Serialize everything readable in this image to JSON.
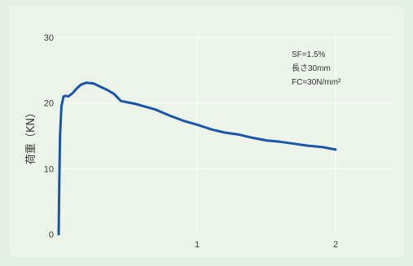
{
  "chart_data": {
    "type": "line",
    "title": "",
    "xlabel": "",
    "ylabel": "荷重（KN）",
    "xlim": [
      0,
      2.4
    ],
    "ylim": [
      0,
      30
    ],
    "x_ticks": [
      {
        "value": 1,
        "label": "1"
      },
      {
        "value": 2,
        "label": "2"
      }
    ],
    "y_ticks": [
      {
        "value": 0,
        "label": "0"
      },
      {
        "value": 10,
        "label": "10"
      },
      {
        "value": 20,
        "label": "20"
      },
      {
        "value": 30,
        "label": "30"
      }
    ],
    "grid": true,
    "annotations": [
      "SF=1.5%",
      "長さ30mm",
      "FC=30N/mm²"
    ],
    "line_color": "#1a55a8",
    "grid_color": "#ffffff",
    "series": [
      {
        "name": "",
        "x": [
          0,
          0.005,
          0.01,
          0.02,
          0.035,
          0.05,
          0.07,
          0.1,
          0.13,
          0.16,
          0.2,
          0.25,
          0.3,
          0.35,
          0.4,
          0.45,
          0.5,
          0.55,
          0.6,
          0.7,
          0.8,
          0.9,
          1.0,
          1.1,
          1.2,
          1.3,
          1.4,
          1.5,
          1.6,
          1.7,
          1.8,
          1.9,
          2.0
        ],
        "y": [
          0,
          8,
          15,
          19.5,
          21,
          21.1,
          21,
          21.5,
          22.2,
          22.8,
          23.1,
          23.0,
          22.5,
          22.0,
          21.4,
          20.3,
          20.1,
          19.9,
          19.6,
          19.0,
          18.1,
          17.3,
          16.7,
          16.0,
          15.5,
          15.2,
          14.7,
          14.3,
          14.1,
          13.8,
          13.5,
          13.3,
          12.9
        ]
      }
    ]
  }
}
